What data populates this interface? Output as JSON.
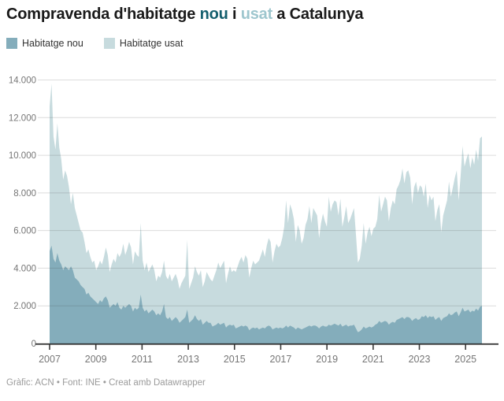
{
  "title": {
    "segments": [
      {
        "text": "Compravenda d'habitatge ",
        "color": "#1a1a1a"
      },
      {
        "text": "nou",
        "color": "#145f6e"
      },
      {
        "text": " i ",
        "color": "#1a1a1a"
      },
      {
        "text": "usat",
        "color": "#9ec6ce"
      },
      {
        "text": " a Catalunya",
        "color": "#1a1a1a"
      }
    ]
  },
  "legend": {
    "items": [
      {
        "label": "Habitatge nou",
        "color": "#84adbb"
      },
      {
        "label": "Habitatge usat",
        "color": "#c7dbde"
      }
    ]
  },
  "footer": {
    "text": "Gràfic: ACN • Font: INE • Creat amb Datawrapper"
  },
  "chart_data": {
    "type": "area",
    "stacked": true,
    "frequency": "monthly",
    "start": "2007-01",
    "end": "2025-08",
    "title": "Compravenda d'habitatge nou i usat a Catalunya",
    "xlabel": "",
    "ylabel": "",
    "ylim": [
      0,
      14000
    ],
    "grid": "horizontal",
    "legend_position": "top-left",
    "y_ticks": [
      {
        "value": 0,
        "label": "0"
      },
      {
        "value": 2000,
        "label": "2.000"
      },
      {
        "value": 4000,
        "label": "4.000"
      },
      {
        "value": 6000,
        "label": "6.000"
      },
      {
        "value": 8000,
        "label": "8.000"
      },
      {
        "value": 10000,
        "label": "10.000"
      },
      {
        "value": 12000,
        "label": "12.000"
      },
      {
        "value": 14000,
        "label": "14.000"
      }
    ],
    "x_ticks": [
      {
        "value": 2007,
        "label": "2007"
      },
      {
        "value": 2009,
        "label": "2009"
      },
      {
        "value": 2011,
        "label": "2011"
      },
      {
        "value": 2013,
        "label": "2013"
      },
      {
        "value": 2015,
        "label": "2015"
      },
      {
        "value": 2017,
        "label": "2017"
      },
      {
        "value": 2019,
        "label": "2019"
      },
      {
        "value": 2021,
        "label": "2021"
      },
      {
        "value": 2023,
        "label": "2023"
      },
      {
        "value": 2025,
        "label": "2025"
      }
    ],
    "series": [
      {
        "name": "Habitatge nou",
        "color": "#84adbb",
        "values": [
          4900,
          5200,
          4500,
          4300,
          4800,
          4400,
          4200,
          3900,
          4100,
          4000,
          3900,
          4100,
          3900,
          3500,
          3400,
          3300,
          3100,
          3000,
          2900,
          2600,
          2700,
          2500,
          2400,
          2300,
          2200,
          2100,
          2300,
          2200,
          2400,
          2500,
          2300,
          1900,
          2000,
          2100,
          2000,
          2200,
          1900,
          1800,
          2000,
          1900,
          2000,
          2100,
          2000,
          1700,
          1900,
          1800,
          1900,
          2600,
          1900,
          1700,
          1800,
          1600,
          1700,
          1800,
          1700,
          1500,
          1600,
          1500,
          1700,
          2100,
          1400,
          1300,
          1400,
          1200,
          1300,
          1400,
          1300,
          1100,
          1200,
          1300,
          1400,
          1800,
          1100,
          1200,
          1300,
          1500,
          1300,
          1200,
          1300,
          1000,
          1100,
          1200,
          1100,
          1100,
          900,
          950,
          1000,
          1100,
          1000,
          1050,
          1100,
          850,
          950,
          1000,
          950,
          1000,
          800,
          850,
          900,
          950,
          900,
          950,
          900,
          700,
          800,
          850,
          800,
          850,
          750,
          800,
          850,
          800,
          900,
          950,
          900,
          750,
          800,
          850,
          800,
          850,
          800,
          850,
          950,
          850,
          950,
          900,
          850,
          750,
          850,
          800,
          750,
          800,
          850,
          900,
          950,
          900,
          950,
          950,
          900,
          800,
          900,
          950,
          900,
          900,
          1000,
          950,
          1000,
          1050,
          1000,
          950,
          1050,
          900,
          950,
          1000,
          900,
          950,
          950,
          1000,
          800,
          600,
          650,
          750,
          900,
          800,
          850,
          900,
          850,
          900,
          1000,
          1050,
          1200,
          1100,
          1150,
          1200,
          1150,
          1000,
          1100,
          1150,
          1100,
          1250,
          1300,
          1350,
          1400,
          1300,
          1400,
          1400,
          1350,
          1200,
          1300,
          1350,
          1250,
          1300,
          1450,
          1400,
          1500,
          1350,
          1450,
          1400,
          1450,
          1250,
          1350,
          1400,
          1200,
          1350,
          1400,
          1450,
          1600,
          1500,
          1550,
          1650,
          1700,
          1450,
          1650,
          1900,
          1700,
          1750,
          1800,
          1650,
          1750,
          1700,
          1850,
          1750,
          1950,
          2000
        ]
      },
      {
        "name": "Habitatge usat",
        "color": "#c7dbde",
        "values": [
          7700,
          8600,
          6500,
          6000,
          6900,
          6000,
          5600,
          4800,
          5100,
          4900,
          4400,
          3300,
          4100,
          3700,
          3400,
          3100,
          2900,
          2900,
          2500,
          2200,
          2300,
          2100,
          1900,
          2100,
          1700,
          2000,
          2100,
          2000,
          2200,
          2600,
          2400,
          1900,
          2200,
          2400,
          2300,
          2600,
          2700,
          3000,
          3300,
          2800,
          3000,
          3300,
          3100,
          2500,
          3000,
          2900,
          2700,
          3800,
          2500,
          2200,
          2500,
          2200,
          2300,
          2400,
          2200,
          1800,
          2000,
          2000,
          2100,
          2300,
          2200,
          2100,
          2300,
          2100,
          2200,
          2300,
          2100,
          1800,
          2000,
          2100,
          2200,
          3700,
          1800,
          2000,
          2200,
          2600,
          2500,
          2400,
          2600,
          2000,
          2200,
          2600,
          2500,
          2300,
          2400,
          2650,
          2900,
          3200,
          3000,
          3150,
          3300,
          2350,
          2750,
          3100,
          2850,
          2900,
          3000,
          3250,
          3500,
          3650,
          3400,
          3750,
          3600,
          2800,
          3200,
          3550,
          3400,
          3450,
          3650,
          3900,
          4150,
          3800,
          4300,
          4650,
          4500,
          3550,
          4100,
          4450,
          4300,
          4350,
          4800,
          5350,
          6650,
          5550,
          6450,
          6200,
          5750,
          4650,
          5450,
          5200,
          4550,
          4800,
          5450,
          5700,
          6350,
          5500,
          6250,
          6050,
          5900,
          4800,
          5500,
          5950,
          5600,
          5300,
          6800,
          6050,
          6400,
          6550,
          6500,
          5850,
          6650,
          5300,
          5750,
          6300,
          5500,
          5650,
          5950,
          6200,
          5000,
          3700,
          3850,
          4450,
          5500,
          4500,
          5050,
          5300,
          4850,
          5200,
          5200,
          5550,
          6700,
          5900,
          6250,
          6600,
          6450,
          5500,
          6100,
          6450,
          6300,
          6950,
          7100,
          7350,
          7900,
          7200,
          7700,
          7800,
          7450,
          6200,
          7000,
          7250,
          6750,
          7100,
          6850,
          6400,
          7000,
          5850,
          6450,
          6200,
          6350,
          5250,
          5750,
          6000,
          4700,
          5450,
          5800,
          6150,
          7000,
          6300,
          6750,
          7150,
          7500,
          6150,
          7250,
          8600,
          7700,
          8050,
          8300,
          7650,
          8150,
          7800,
          8450,
          7950,
          8950,
          9000
        ]
      }
    ]
  }
}
